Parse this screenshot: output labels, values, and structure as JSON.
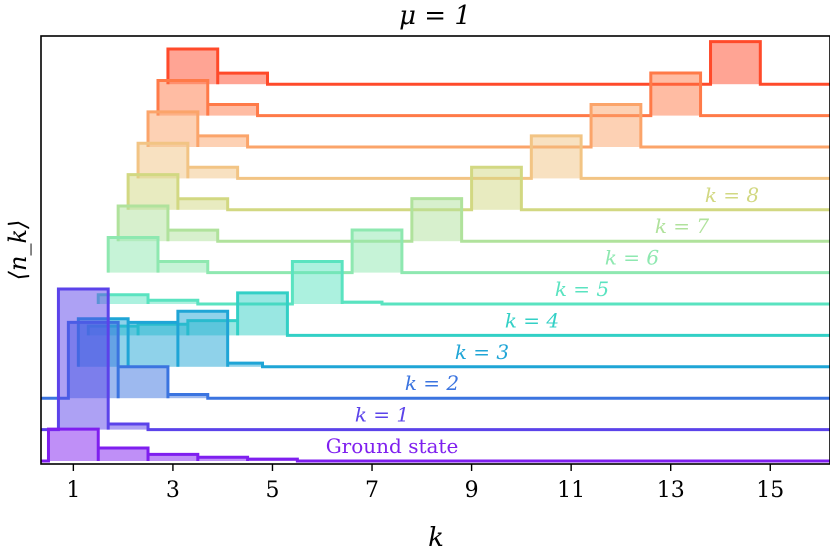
{
  "chart_data": {
    "type": "line",
    "title": "μ = 1",
    "xlabel": "k",
    "ylabel": "⟨n_k⟩",
    "xlim": [
      0.35,
      16.2
    ],
    "x_ticks": [
      1,
      3,
      5,
      7,
      9,
      11,
      13,
      15
    ],
    "y_ticks": [],
    "grid": false,
    "legend": "inline labels at right of curves",
    "step": "mid",
    "series": [
      {
        "name": "Ground state",
        "label": "Ground state",
        "color": "#7f1fef",
        "offset": 0,
        "x_start": 0.35,
        "segments": [
          [
            0.5,
            1.5,
            0.86
          ],
          [
            1.5,
            2.5,
            0.35
          ],
          [
            2.5,
            3.5,
            0.18
          ],
          [
            3.5,
            4.5,
            0.1
          ],
          [
            4.5,
            5.5,
            0.05
          ]
        ]
      },
      {
        "name": "k = 1",
        "label": "k = 1",
        "color": "#5b43ea",
        "offset": 1,
        "x_start": 0.35,
        "segments": [
          [
            0.7,
            1.7,
            3.8
          ],
          [
            1.7,
            2.5,
            0.15
          ]
        ]
      },
      {
        "name": "k = 2",
        "label": "k = 2",
        "color": "#3b74e0",
        "offset": 2,
        "x_start": 0.35,
        "segments": [
          [
            0.9,
            1.9,
            2.05
          ],
          [
            1.9,
            2.9,
            0.85
          ],
          [
            2.9,
            3.7,
            0.1
          ]
        ]
      },
      {
        "name": "k = 3",
        "label": "k = 3",
        "color": "#1fa5d6",
        "offset": 3,
        "x_start": 1.1,
        "segments": [
          [
            1.1,
            2.1,
            1.3
          ],
          [
            2.1,
            3.1,
            1.2
          ],
          [
            3.1,
            4.1,
            1.5
          ],
          [
            4.1,
            4.8,
            0.1
          ]
        ]
      },
      {
        "name": "k = 4",
        "label": "k = 4",
        "color": "#33d0c6",
        "offset": 4,
        "x_start": 1.3,
        "segments": [
          [
            1.3,
            2.3,
            0.25
          ],
          [
            2.3,
            3.3,
            0.3
          ],
          [
            3.3,
            4.3,
            0.4
          ],
          [
            4.3,
            5.3,
            1.15
          ]
        ]
      },
      {
        "name": "k = 5",
        "label": "k = 5",
        "color": "#5ae3c0",
        "offset": 5,
        "x_start": 1.5,
        "segments": [
          [
            1.5,
            2.5,
            0.25
          ],
          [
            2.5,
            3.5,
            0.1
          ],
          [
            5.4,
            6.4,
            1.15
          ],
          [
            6.4,
            7.2,
            0.05
          ]
        ]
      },
      {
        "name": "k = 6",
        "label": "k = 6",
        "color": "#8ee8b0",
        "offset": 6,
        "x_start": 1.7,
        "segments": [
          [
            1.7,
            2.7,
            0.95
          ],
          [
            2.7,
            3.7,
            0.3
          ],
          [
            6.6,
            7.6,
            1.15
          ]
        ]
      },
      {
        "name": "k = 7",
        "label": "k = 7",
        "color": "#b0e29c",
        "offset": 7,
        "x_start": 1.9,
        "segments": [
          [
            1.9,
            2.9,
            0.95
          ],
          [
            2.9,
            3.9,
            0.3
          ],
          [
            7.8,
            8.8,
            1.15
          ]
        ]
      },
      {
        "name": "k = 8",
        "label": "k = 8",
        "color": "#d2d882",
        "offset": 8,
        "x_start": 2.1,
        "segments": [
          [
            2.1,
            3.1,
            0.95
          ],
          [
            3.1,
            4.1,
            0.3
          ],
          [
            9.0,
            10.0,
            1.15
          ]
        ]
      },
      {
        "name": "",
        "label": "",
        "color": "#f2c484",
        "offset": 9,
        "x_start": 2.3,
        "segments": [
          [
            2.3,
            3.3,
            0.95
          ],
          [
            3.3,
            4.3,
            0.3
          ],
          [
            10.2,
            11.2,
            1.15
          ]
        ]
      },
      {
        "name": "",
        "label": "",
        "color": "#fba46a",
        "offset": 10,
        "x_start": 2.5,
        "segments": [
          [
            2.5,
            3.5,
            0.95
          ],
          [
            3.5,
            4.5,
            0.3
          ],
          [
            11.4,
            12.4,
            1.15
          ]
        ]
      },
      {
        "name": "",
        "label": "",
        "color": "#ff7a48",
        "offset": 11,
        "x_start": 2.7,
        "segments": [
          [
            2.7,
            3.7,
            0.95
          ],
          [
            3.7,
            4.7,
            0.3
          ],
          [
            12.6,
            13.6,
            1.15
          ]
        ]
      },
      {
        "name": "",
        "label": "",
        "color": "#ff4a2a",
        "offset": 12,
        "x_start": 2.9,
        "segments": [
          [
            2.9,
            3.9,
            0.95
          ],
          [
            3.9,
            4.9,
            0.3
          ],
          [
            13.8,
            14.8,
            1.15
          ]
        ]
      }
    ]
  }
}
